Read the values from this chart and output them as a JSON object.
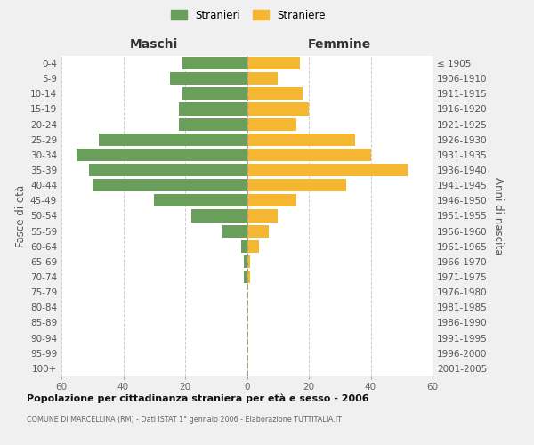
{
  "age_groups": [
    "0-4",
    "5-9",
    "10-14",
    "15-19",
    "20-24",
    "25-29",
    "30-34",
    "35-39",
    "40-44",
    "45-49",
    "50-54",
    "55-59",
    "60-64",
    "65-69",
    "70-74",
    "75-79",
    "80-84",
    "85-89",
    "90-94",
    "95-99",
    "100+"
  ],
  "birth_years": [
    "2001-2005",
    "1996-2000",
    "1991-1995",
    "1986-1990",
    "1981-1985",
    "1976-1980",
    "1971-1975",
    "1966-1970",
    "1961-1965",
    "1956-1960",
    "1951-1955",
    "1946-1950",
    "1941-1945",
    "1936-1940",
    "1931-1935",
    "1926-1930",
    "1921-1925",
    "1916-1920",
    "1911-1915",
    "1906-1910",
    "≤ 1905"
  ],
  "maschi": [
    21,
    25,
    21,
    22,
    22,
    48,
    55,
    51,
    50,
    30,
    18,
    8,
    2,
    1,
    1,
    0,
    0,
    0,
    0,
    0,
    0
  ],
  "femmine": [
    17,
    10,
    18,
    20,
    16,
    35,
    40,
    52,
    32,
    16,
    10,
    7,
    4,
    1,
    1,
    0,
    0,
    0,
    0,
    0,
    0
  ],
  "male_color": "#6a9e5b",
  "female_color": "#f5b731",
  "bg_color": "#f0f0f0",
  "plot_bg": "#ffffff",
  "title": "Popolazione per cittadinanza straniera per età e sesso - 2006",
  "subtitle": "COMUNE DI MARCELLINA (RM) - Dati ISTAT 1° gennaio 2006 - Elaborazione TUTTITALIA.IT",
  "ylabel_left": "Fasce di età",
  "ylabel_right": "Anni di nascita",
  "xlabel_left": "Maschi",
  "xlabel_right": "Femmine",
  "legend_male": "Stranieri",
  "legend_female": "Straniere",
  "xlim": 60,
  "grid_color": "#cccccc"
}
